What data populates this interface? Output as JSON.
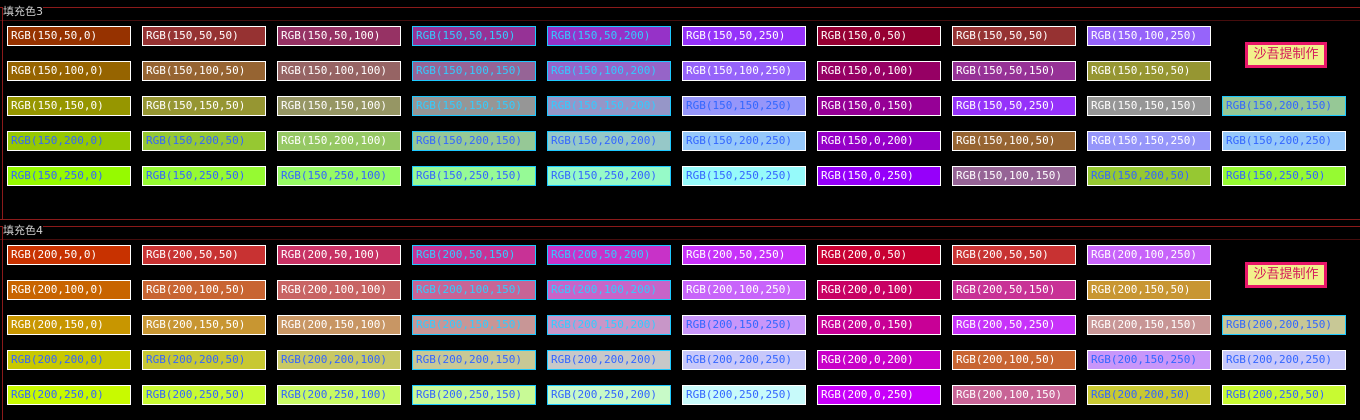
{
  "sections": [
    {
      "title": "填充色3",
      "signature": "沙吾提制作",
      "rows": [
        [
          {
            "label": "RGB(150,50,0)",
            "bg": "#963200",
            "fg": "#ffffff",
            "border": "white"
          },
          {
            "label": "RGB(150,50,50)",
            "bg": "#963232",
            "fg": "#ffffff",
            "border": "white"
          },
          {
            "label": "RGB(150,50,100)",
            "bg": "#963264",
            "fg": "#ffffff",
            "border": "white"
          },
          {
            "label": "RGB(150,50,150)",
            "bg": "#963296",
            "fg": "#33ccff",
            "border": "cyan"
          },
          {
            "label": "RGB(150,50,200)",
            "bg": "#9632c8",
            "fg": "#33ccff",
            "border": "cyan"
          },
          {
            "label": "RGB(150,50,250)",
            "bg": "#9632fa",
            "fg": "#ffffff",
            "border": "white"
          },
          {
            "label": "RGB(150,0,50)",
            "bg": "#960032",
            "fg": "#ffffff",
            "border": "white"
          },
          {
            "label": "RGB(150,50,50)",
            "bg": "#963232",
            "fg": "#ffffff",
            "border": "white"
          },
          {
            "label": "RGB(150,100,250)",
            "bg": "#9664fa",
            "fg": "#ffffff",
            "border": "white"
          }
        ],
        [
          {
            "label": "RGB(150,100,0)",
            "bg": "#966400",
            "fg": "#ffffff",
            "border": "white"
          },
          {
            "label": "RGB(150,100,50)",
            "bg": "#966432",
            "fg": "#ffffff",
            "border": "white"
          },
          {
            "label": "RGB(150,100,100)",
            "bg": "#966464",
            "fg": "#ffffff",
            "border": "white"
          },
          {
            "label": "RGB(150,100,150)",
            "bg": "#966496",
            "fg": "#33ccff",
            "border": "cyan"
          },
          {
            "label": "RGB(150,100,200)",
            "bg": "#9664c8",
            "fg": "#33ccff",
            "border": "cyan"
          },
          {
            "label": "RGB(150,100,250)",
            "bg": "#9664fa",
            "fg": "#ffffff",
            "border": "white"
          },
          {
            "label": "RGB(150,0,100)",
            "bg": "#960064",
            "fg": "#ffffff",
            "border": "white"
          },
          {
            "label": "RGB(150,50,150)",
            "bg": "#963296",
            "fg": "#ffffff",
            "border": "white"
          },
          {
            "label": "RGB(150,150,50)",
            "bg": "#969632",
            "fg": "#ffffff",
            "border": "white"
          }
        ],
        [
          {
            "label": "RGB(150,150,0)",
            "bg": "#969600",
            "fg": "#ffffff",
            "border": "white"
          },
          {
            "label": "RGB(150,150,50)",
            "bg": "#969632",
            "fg": "#ffffff",
            "border": "white"
          },
          {
            "label": "RGB(150,150,100)",
            "bg": "#969664",
            "fg": "#ffffff",
            "border": "white"
          },
          {
            "label": "RGB(150,150,150)",
            "bg": "#969696",
            "fg": "#33ccff",
            "border": "cyan"
          },
          {
            "label": "RGB(150,150,200)",
            "bg": "#9696c8",
            "fg": "#33ccff",
            "border": "cyan"
          },
          {
            "label": "RGB(150,150,250)",
            "bg": "#9696fa",
            "fg": "#3366ff",
            "border": "white"
          },
          {
            "label": "RGB(150,0,150)",
            "bg": "#960096",
            "fg": "#ffffff",
            "border": "white"
          },
          {
            "label": "RGB(150,50,250)",
            "bg": "#9632fa",
            "fg": "#ffffff",
            "border": "white"
          },
          {
            "label": "RGB(150,150,150)",
            "bg": "#969696",
            "fg": "#ffffff",
            "border": "white"
          },
          {
            "label": "RGB(150,200,150)",
            "bg": "#96c896",
            "fg": "#3366ff",
            "border": "cyan"
          }
        ],
        [
          {
            "label": "RGB(150,200,0)",
            "bg": "#96c800",
            "fg": "#3366ff",
            "border": "white"
          },
          {
            "label": "RGB(150,200,50)",
            "bg": "#96c832",
            "fg": "#3366ff",
            "border": "white"
          },
          {
            "label": "RGB(150,200,100)",
            "bg": "#96c864",
            "fg": "#ffffff",
            "border": "white"
          },
          {
            "label": "RGB(150,200,150)",
            "bg": "#96c896",
            "fg": "#3366ff",
            "border": "cyan"
          },
          {
            "label": "RGB(150,200,200)",
            "bg": "#96c8c8",
            "fg": "#3366ff",
            "border": "cyan"
          },
          {
            "label": "RGB(150,200,250)",
            "bg": "#96c8fa",
            "fg": "#3366ff",
            "border": "white"
          },
          {
            "label": "RGB(150,0,200)",
            "bg": "#9600c8",
            "fg": "#ffffff",
            "border": "white"
          },
          {
            "label": "RGB(150,100,50)",
            "bg": "#966432",
            "fg": "#ffffff",
            "border": "white"
          },
          {
            "label": "RGB(150,150,250)",
            "bg": "#9696fa",
            "fg": "#ffffff",
            "border": "white"
          },
          {
            "label": "RGB(150,200,250)",
            "bg": "#96c8fa",
            "fg": "#3366ff",
            "border": "white"
          }
        ],
        [
          {
            "label": "RGB(150,250,0)",
            "bg": "#96fa00",
            "fg": "#3366ff",
            "border": "white"
          },
          {
            "label": "RGB(150,250,50)",
            "bg": "#96fa32",
            "fg": "#3366ff",
            "border": "white"
          },
          {
            "label": "RGB(150,250,100)",
            "bg": "#96fa64",
            "fg": "#3366ff",
            "border": "white"
          },
          {
            "label": "RGB(150,250,150)",
            "bg": "#96fa96",
            "fg": "#3366ff",
            "border": "cyan"
          },
          {
            "label": "RGB(150,250,200)",
            "bg": "#96fac8",
            "fg": "#3366ff",
            "border": "cyan"
          },
          {
            "label": "RGB(150,250,250)",
            "bg": "#96fafa",
            "fg": "#3366ff",
            "border": "white"
          },
          {
            "label": "RGB(150,0,250)",
            "bg": "#9600fa",
            "fg": "#ffffff",
            "border": "white"
          },
          {
            "label": "RGB(150,100,150)",
            "bg": "#966496",
            "fg": "#ffffff",
            "border": "white"
          },
          {
            "label": "RGB(150,200,50)",
            "bg": "#96c832",
            "fg": "#3366ff",
            "border": "white"
          },
          {
            "label": "RGB(150,250,50)",
            "bg": "#96fa32",
            "fg": "#3366ff",
            "border": "white"
          }
        ]
      ]
    },
    {
      "title": "填充色4",
      "signature": "沙吾提制作",
      "rows": [
        [
          {
            "label": "RGB(200,50,0)",
            "bg": "#c83200",
            "fg": "#ffffff",
            "border": "white"
          },
          {
            "label": "RGB(200,50,50)",
            "bg": "#c83232",
            "fg": "#ffffff",
            "border": "white"
          },
          {
            "label": "RGB(200,50,100)",
            "bg": "#c83264",
            "fg": "#ffffff",
            "border": "white"
          },
          {
            "label": "RGB(200,50,150)",
            "bg": "#c83296",
            "fg": "#33ccff",
            "border": "cyan"
          },
          {
            "label": "RGB(200,50,200)",
            "bg": "#c832c8",
            "fg": "#33ccff",
            "border": "cyan"
          },
          {
            "label": "RGB(200,50,250)",
            "bg": "#c832fa",
            "fg": "#ffffff",
            "border": "white"
          },
          {
            "label": "RGB(200,0,50)",
            "bg": "#c80032",
            "fg": "#ffffff",
            "border": "white"
          },
          {
            "label": "RGB(200,50,50)",
            "bg": "#c83232",
            "fg": "#ffffff",
            "border": "white"
          },
          {
            "label": "RGB(200,100,250)",
            "bg": "#c864fa",
            "fg": "#ffffff",
            "border": "white"
          }
        ],
        [
          {
            "label": "RGB(200,100,0)",
            "bg": "#c86400",
            "fg": "#ffffff",
            "border": "white"
          },
          {
            "label": "RGB(200,100,50)",
            "bg": "#c86432",
            "fg": "#ffffff",
            "border": "white"
          },
          {
            "label": "RGB(200,100,100)",
            "bg": "#c86464",
            "fg": "#ffffff",
            "border": "white"
          },
          {
            "label": "RGB(200,100,150)",
            "bg": "#c86496",
            "fg": "#33ccff",
            "border": "cyan"
          },
          {
            "label": "RGB(200,100,200)",
            "bg": "#c864c8",
            "fg": "#33ccff",
            "border": "cyan"
          },
          {
            "label": "RGB(200,100,250)",
            "bg": "#c864fa",
            "fg": "#ffffff",
            "border": "white"
          },
          {
            "label": "RGB(200,0,100)",
            "bg": "#c80064",
            "fg": "#ffffff",
            "border": "white"
          },
          {
            "label": "RGB(200,50,150)",
            "bg": "#c83296",
            "fg": "#ffffff",
            "border": "white"
          },
          {
            "label": "RGB(200,150,50)",
            "bg": "#c89632",
            "fg": "#ffffff",
            "border": "white"
          }
        ],
        [
          {
            "label": "RGB(200,150,0)",
            "bg": "#c89600",
            "fg": "#ffffff",
            "border": "white"
          },
          {
            "label": "RGB(200,150,50)",
            "bg": "#c89632",
            "fg": "#ffffff",
            "border": "white"
          },
          {
            "label": "RGB(200,150,100)",
            "bg": "#c89664",
            "fg": "#ffffff",
            "border": "white"
          },
          {
            "label": "RGB(200,150,150)",
            "bg": "#c89696",
            "fg": "#33ccff",
            "border": "cyan"
          },
          {
            "label": "RGB(200,150,200)",
            "bg": "#c896c8",
            "fg": "#33ccff",
            "border": "cyan"
          },
          {
            "label": "RGB(200,150,250)",
            "bg": "#c896fa",
            "fg": "#3366ff",
            "border": "white"
          },
          {
            "label": "RGB(200,0,150)",
            "bg": "#c80096",
            "fg": "#ffffff",
            "border": "white"
          },
          {
            "label": "RGB(200,50,250)",
            "bg": "#c832fa",
            "fg": "#ffffff",
            "border": "white"
          },
          {
            "label": "RGB(200,150,150)",
            "bg": "#c89696",
            "fg": "#ffffff",
            "border": "white"
          },
          {
            "label": "RGB(200,200,150)",
            "bg": "#c8c896",
            "fg": "#3366ff",
            "border": "cyan"
          }
        ],
        [
          {
            "label": "RGB(200,200,0)",
            "bg": "#c8c800",
            "fg": "#3366ff",
            "border": "white"
          },
          {
            "label": "RGB(200,200,50)",
            "bg": "#c8c832",
            "fg": "#3366ff",
            "border": "white"
          },
          {
            "label": "RGB(200,200,100)",
            "bg": "#c8c864",
            "fg": "#3366ff",
            "border": "white"
          },
          {
            "label": "RGB(200,200,150)",
            "bg": "#c8c896",
            "fg": "#3366ff",
            "border": "cyan"
          },
          {
            "label": "RGB(200,200,200)",
            "bg": "#c8c8c8",
            "fg": "#3366ff",
            "border": "cyan"
          },
          {
            "label": "RGB(200,200,250)",
            "bg": "#c8c8fa",
            "fg": "#3366ff",
            "border": "white"
          },
          {
            "label": "RGB(200,0,200)",
            "bg": "#c800c8",
            "fg": "#ffffff",
            "border": "white"
          },
          {
            "label": "RGB(200,100,50)",
            "bg": "#c86432",
            "fg": "#ffffff",
            "border": "white"
          },
          {
            "label": "RGB(200,150,250)",
            "bg": "#c896fa",
            "fg": "#3366ff",
            "border": "white"
          },
          {
            "label": "RGB(200,200,250)",
            "bg": "#c8c8fa",
            "fg": "#3366ff",
            "border": "white"
          }
        ],
        [
          {
            "label": "RGB(200,250,0)",
            "bg": "#c8fa00",
            "fg": "#3366ff",
            "border": "white"
          },
          {
            "label": "RGB(200,250,50)",
            "bg": "#c8fa32",
            "fg": "#3366ff",
            "border": "white"
          },
          {
            "label": "RGB(200,250,100)",
            "bg": "#c8fa64",
            "fg": "#3366ff",
            "border": "white"
          },
          {
            "label": "RGB(200,250,150)",
            "bg": "#c8fa96",
            "fg": "#3366ff",
            "border": "cyan"
          },
          {
            "label": "RGB(200,250,200)",
            "bg": "#c8fac8",
            "fg": "#3366ff",
            "border": "cyan"
          },
          {
            "label": "RGB(200,250,250)",
            "bg": "#c8fafa",
            "fg": "#3366ff",
            "border": "white"
          },
          {
            "label": "RGB(200,0,250)",
            "bg": "#c800fa",
            "fg": "#ffffff",
            "border": "white"
          },
          {
            "label": "RGB(200,100,150)",
            "bg": "#c86496",
            "fg": "#ffffff",
            "border": "white"
          },
          {
            "label": "RGB(200,200,50)",
            "bg": "#c8c832",
            "fg": "#3366ff",
            "border": "white"
          },
          {
            "label": "RGB(200,250,50)",
            "bg": "#c8fa32",
            "fg": "#3366ff",
            "border": "white"
          }
        ]
      ]
    }
  ]
}
